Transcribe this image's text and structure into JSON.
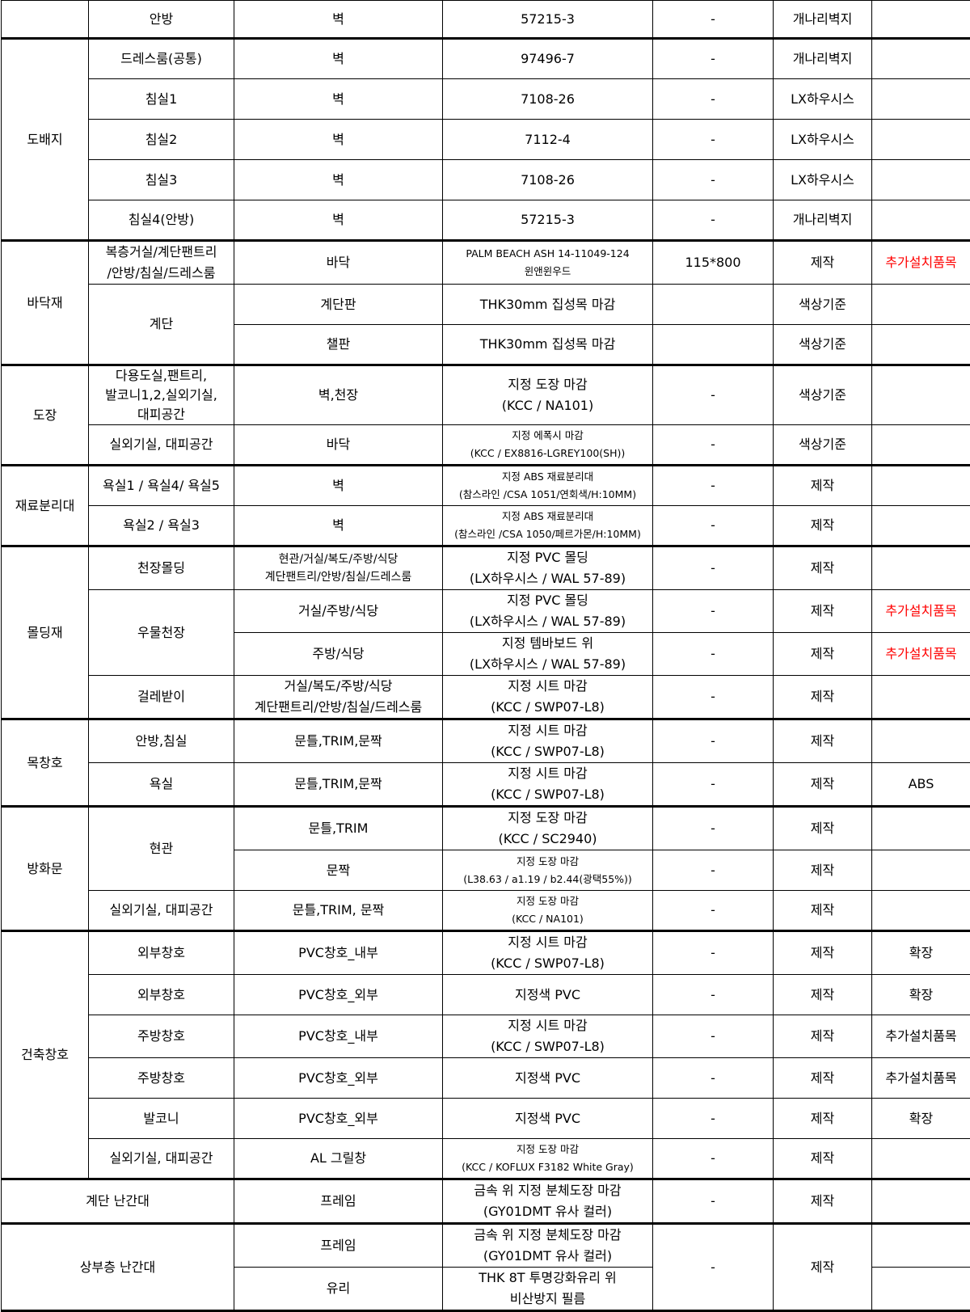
{
  "note_color": "#ff0000",
  "groups": [
    {
      "category": "",
      "locations": [
        {
          "name": "안방",
          "rows": [
            {
              "part": "벽",
              "spec": "57215-3",
              "size": "-",
              "maker": "개나리벽지",
              "note": ""
            }
          ]
        }
      ]
    },
    {
      "category": "도배지",
      "locations": [
        {
          "name": "드레스룸(공통)",
          "rows": [
            {
              "part": "벽",
              "spec": "97496-7",
              "size": "-",
              "maker": "개나리벽지",
              "note": ""
            }
          ]
        },
        {
          "name": "침실1",
          "rows": [
            {
              "part": "벽",
              "spec": "7108-26",
              "size": "-",
              "maker": "LX하우시스",
              "note": ""
            }
          ]
        },
        {
          "name": "침실2",
          "rows": [
            {
              "part": "벽",
              "spec": "7112-4",
              "size": "-",
              "maker": "LX하우시스",
              "note": ""
            }
          ]
        },
        {
          "name": "침실3",
          "rows": [
            {
              "part": "벽",
              "spec": "7108-26",
              "size": "-",
              "maker": "LX하우시스",
              "note": ""
            }
          ]
        },
        {
          "name": "침실4(안방)",
          "rows": [
            {
              "part": "벽",
              "spec": "57215-3",
              "size": "-",
              "maker": "개나리벽지",
              "note": ""
            }
          ]
        }
      ]
    },
    {
      "category": "바닥재",
      "locations": [
        {
          "name": "복층거실/계단팬트리\n/안방/침실/드레스룸",
          "rows": [
            {
              "part": "바닥",
              "spec": "PALM BEACH ASH 14-11049-124\n윈앤윈우드",
              "size": "115*800",
              "maker": "제작",
              "note": "추가설치품목",
              "note_red": true
            }
          ]
        },
        {
          "name": "계단",
          "rows": [
            {
              "part": "계단판",
              "spec": "THK30mm 집성목 마감",
              "size": "",
              "maker": "색상기준",
              "note": ""
            },
            {
              "part": "챌판",
              "spec": "THK30mm 집성목 마감",
              "size": "",
              "maker": "색상기준",
              "note": ""
            }
          ]
        }
      ]
    },
    {
      "category": "도장",
      "locations": [
        {
          "name": "다용도실,팬트리,\n발코니1,2,실외기실,\n대피공간",
          "rows": [
            {
              "part": "벽,천장",
              "spec": "지정 도장 마감\n(KCC / NA101)",
              "size": "-",
              "maker": "색상기준",
              "note": ""
            }
          ]
        },
        {
          "name": "실외기실, 대피공간",
          "rows": [
            {
              "part": "바닥",
              "spec": "지정 에폭시 마감\n(KCC / EX8816-LGREY100(SH))",
              "size": "-",
              "maker": "색상기준",
              "note": ""
            }
          ]
        }
      ]
    },
    {
      "category": "재료분리대",
      "locations": [
        {
          "name": "욕실1 / 욕실4/ 욕실5",
          "rows": [
            {
              "part": "벽",
              "spec": "지정 ABS 재료분리대\n(참스라인 /CSA 1051/연회색/H:10MM)",
              "size": "-",
              "maker": "제작",
              "note": ""
            }
          ]
        },
        {
          "name": "욕실2 / 욕실3",
          "rows": [
            {
              "part": "벽",
              "spec": "지정 ABS 재료분리대\n(참스라인 /CSA 1050/페르가몬/H:10MM)",
              "size": "-",
              "maker": "제작",
              "note": ""
            }
          ]
        }
      ]
    },
    {
      "category": "몰딩재",
      "locations": [
        {
          "name": "천장몰딩",
          "rows": [
            {
              "part": "현관/거실/복도/주방/식당\n계단팬트리/안방/침실/드레스룸",
              "spec": "지정 PVC 몰딩\n(LX하우시스 / WAL 57-89)",
              "size": "-",
              "maker": "제작",
              "note": ""
            }
          ]
        },
        {
          "name": "우물천장",
          "rows": [
            {
              "part": "거실/주방/식당",
              "spec": "지정 PVC 몰딩\n(LX하우시스 / WAL 57-89)",
              "size": "-",
              "maker": "제작",
              "note": "추가설치품목",
              "note_red": true
            },
            {
              "part": "주방/식당",
              "spec": "지정 템바보드 위\n(LX하우시스 / WAL 57-89)",
              "size": "-",
              "maker": "제작",
              "note": "추가설치품목",
              "note_red": true
            }
          ]
        },
        {
          "name": "걸레받이",
          "rows": [
            {
              "part": "거실/복도/주방/식당\n계단팬트리/안방/침실/드레스룸",
              "spec": "지정 시트 마감\n(KCC / SWP07-L8)",
              "size": "-",
              "maker": "제작",
              "note": ""
            }
          ]
        }
      ]
    },
    {
      "category": "목창호",
      "locations": [
        {
          "name": "안방,침실",
          "rows": [
            {
              "part": "문틀,TRIM,문짝",
              "spec": "지정 시트 마감\n(KCC / SWP07-L8)",
              "size": "-",
              "maker": "제작",
              "note": ""
            }
          ]
        },
        {
          "name": "욕실",
          "rows": [
            {
              "part": "문틀,TRIM,문짝",
              "spec": "지정 시트 마감\n(KCC / SWP07-L8)",
              "size": "-",
              "maker": "제작",
              "note": "ABS"
            }
          ]
        }
      ]
    },
    {
      "category": "방화문",
      "locations": [
        {
          "name": "현관",
          "rows": [
            {
              "part": "문틀,TRIM",
              "spec": "지정 도장 마감\n(KCC / SC2940)",
              "size": "-",
              "maker": "제작",
              "note": ""
            },
            {
              "part": "문짝",
              "spec": "지정 도장 마감\n(L38.63 / a1.19 / b2.44(광택55%))",
              "size": "-",
              "maker": "제작",
              "note": ""
            }
          ]
        },
        {
          "name": "실외기실, 대피공간",
          "rows": [
            {
              "part": "문틀,TRIM, 문짝",
              "spec": "지정 도장 마감\n(KCC / NA101)",
              "size": "-",
              "maker": "제작",
              "note": ""
            }
          ]
        }
      ]
    },
    {
      "category": "건축창호",
      "locations": [
        {
          "name": "외부창호",
          "rows": [
            {
              "part": "PVC창호_내부",
              "spec": "지정 시트 마감\n(KCC / SWP07-L8)",
              "size": "-",
              "maker": "제작",
              "note": "확장"
            }
          ]
        },
        {
          "name": "외부창호",
          "rows": [
            {
              "part": "PVC창호_외부",
              "spec": "지정색 PVC",
              "size": "-",
              "maker": "제작",
              "note": "확장"
            }
          ]
        },
        {
          "name": "주방창호",
          "rows": [
            {
              "part": "PVC창호_내부",
              "spec": "지정 시트 마감\n(KCC / SWP07-L8)",
              "size": "-",
              "maker": "제작",
              "note": "추가설치품목"
            }
          ]
        },
        {
          "name": "주방창호",
          "rows": [
            {
              "part": "PVC창호_외부",
              "spec": "지정색 PVC",
              "size": "-",
              "maker": "제작",
              "note": "추가설치품목"
            }
          ]
        },
        {
          "name": "발코니",
          "rows": [
            {
              "part": "PVC창호_외부",
              "spec": "지정색 PVC",
              "size": "-",
              "maker": "제작",
              "note": "확장"
            }
          ]
        },
        {
          "name": "실외기실, 대피공간",
          "rows": [
            {
              "part": "AL 그릴창",
              "spec": "지정 도장 마감\n(KCC / KOFLUX F3182 White Gray)",
              "size": "-",
              "maker": "제작",
              "note": ""
            }
          ]
        }
      ]
    },
    {
      "category": "계단 난간대",
      "locations": [
        {
          "name": null,
          "rows": [
            {
              "part": "프레임",
              "spec": "금속 위 지정 분체도장 마감\n(GY01DMT 유사 컬러)",
              "size": "-",
              "maker": "제작",
              "note": ""
            }
          ]
        }
      ]
    },
    {
      "category": "상부층 난간대",
      "locations": [
        {
          "name": null,
          "rows": [
            {
              "part": "프레임",
              "spec": "금속 위 지정 분체도장 마감\n(GY01DMT 유사 컬러)",
              "size": "-",
              "maker": "제작",
              "note": ""
            },
            {
              "part": "유리",
              "spec": "THK 8T 투명강화유리 위\n비산방지 필름",
              "note": ""
            }
          ]
        }
      ]
    }
  ]
}
